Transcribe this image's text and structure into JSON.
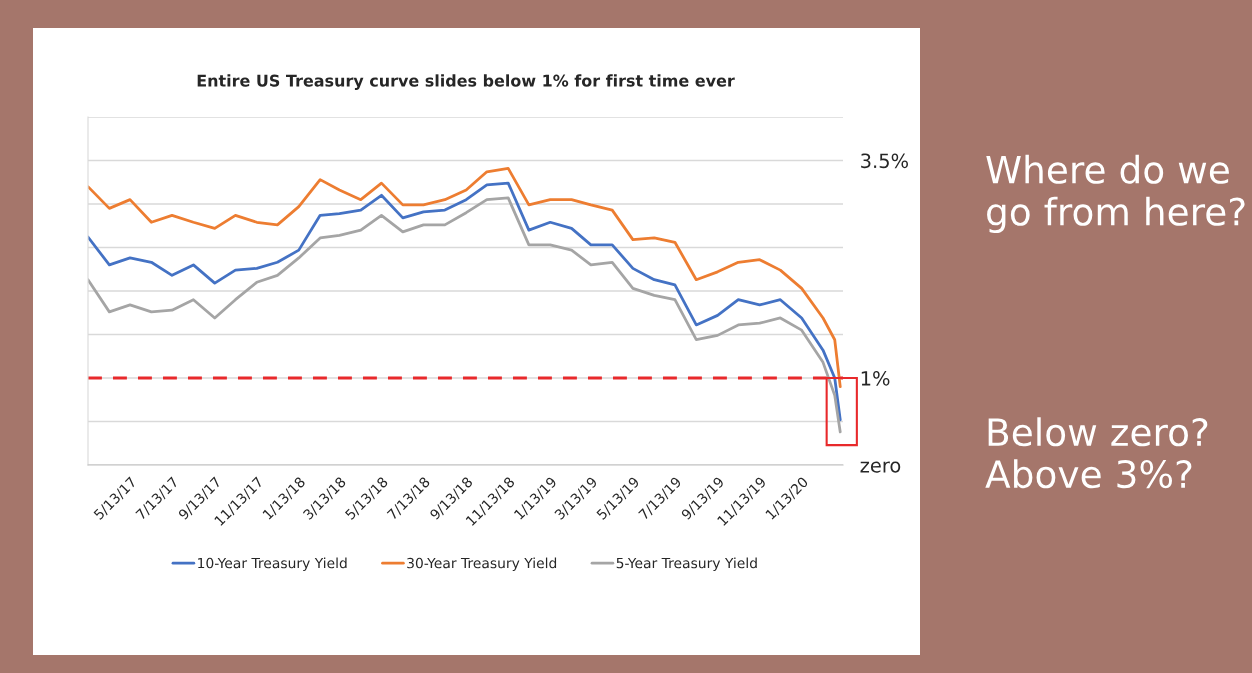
{
  "chart_data": {
    "type": "line",
    "title": "Entire US Treasury curve slides below 1% for first time ever",
    "x": [
      "2017-03-13",
      "2017-04-13",
      "2017-05-13",
      "2017-06-13",
      "2017-07-13",
      "2017-08-13",
      "2017-09-13",
      "2017-10-13",
      "2017-11-13",
      "2017-12-13",
      "2018-01-13",
      "2018-02-13",
      "2018-03-13",
      "2018-04-13",
      "2018-05-13",
      "2018-06-13",
      "2018-07-13",
      "2018-08-13",
      "2018-09-13",
      "2018-10-13",
      "2018-11-13",
      "2018-12-13",
      "2019-01-13",
      "2019-02-13",
      "2019-03-13",
      "2019-04-13",
      "2019-05-13",
      "2019-06-13",
      "2019-07-13",
      "2019-08-13",
      "2019-09-13",
      "2019-10-13",
      "2019-11-13",
      "2019-12-13",
      "2020-01-13",
      "2020-02-13",
      "2020-03-01",
      "2020-03-09"
    ],
    "series": [
      {
        "name": "10-Year Treasury Yield",
        "color": "#4472c4",
        "values": [
          2.62,
          2.3,
          2.38,
          2.33,
          2.18,
          2.3,
          2.09,
          2.24,
          2.26,
          2.33,
          2.47,
          2.87,
          2.89,
          2.93,
          3.1,
          2.84,
          2.91,
          2.93,
          3.05,
          3.22,
          3.24,
          2.7,
          2.79,
          2.72,
          2.53,
          2.53,
          2.26,
          2.13,
          2.07,
          1.61,
          1.72,
          1.9,
          1.84,
          1.9,
          1.69,
          1.32,
          1.0,
          0.52
        ]
      },
      {
        "name": "30-Year Treasury Yield",
        "color": "#ed7d31",
        "values": [
          3.2,
          2.95,
          3.05,
          2.79,
          2.87,
          2.79,
          2.72,
          2.87,
          2.79,
          2.76,
          2.97,
          3.28,
          3.16,
          3.05,
          3.24,
          2.99,
          2.99,
          3.05,
          3.16,
          3.37,
          3.41,
          2.99,
          3.05,
          3.05,
          2.99,
          2.93,
          2.59,
          2.61,
          2.56,
          2.13,
          2.22,
          2.33,
          2.36,
          2.24,
          2.03,
          1.69,
          1.44,
          0.9
        ]
      },
      {
        "name": "5-Year Treasury Yield",
        "color": "#a5a5a5",
        "values": [
          2.13,
          1.76,
          1.84,
          1.76,
          1.78,
          1.9,
          1.69,
          1.9,
          2.1,
          2.18,
          2.38,
          2.61,
          2.64,
          2.7,
          2.87,
          2.68,
          2.76,
          2.76,
          2.9,
          3.05,
          3.07,
          2.53,
          2.53,
          2.47,
          2.3,
          2.33,
          2.03,
          1.95,
          1.9,
          1.44,
          1.49,
          1.61,
          1.63,
          1.69,
          1.55,
          1.18,
          0.8,
          0.38
        ]
      }
    ],
    "xlim": [
      "2017-03-13",
      "2020-03-13"
    ],
    "xticks": [
      {
        "value": "2017-03-13",
        "label": null
      },
      {
        "value": "2017-05-13",
        "label": "5/13/17"
      },
      {
        "value": "2017-07-13",
        "label": "7/13/17"
      },
      {
        "value": "2017-09-13",
        "label": "9/13/17"
      },
      {
        "value": "2017-11-13",
        "label": "11/13/17"
      },
      {
        "value": "2018-01-13",
        "label": "1/13/18"
      },
      {
        "value": "2018-03-13",
        "label": "3/13/18"
      },
      {
        "value": "2018-05-13",
        "label": "5/13/18"
      },
      {
        "value": "2018-07-13",
        "label": "7/13/18"
      },
      {
        "value": "2018-09-13",
        "label": "9/13/18"
      },
      {
        "value": "2018-11-13",
        "label": "11/13/18"
      },
      {
        "value": "2019-01-13",
        "label": "1/13/19"
      },
      {
        "value": "2019-03-13",
        "label": "3/13/19"
      },
      {
        "value": "2019-05-13",
        "label": "5/13/19"
      },
      {
        "value": "2019-07-13",
        "label": "7/13/19"
      },
      {
        "value": "2019-09-13",
        "label": "9/13/19"
      },
      {
        "value": "2019-11-13",
        "label": "11/13/19"
      },
      {
        "value": "2020-01-13",
        "label": "1/13/20"
      }
    ],
    "ylim": [
      0,
      4
    ],
    "yticks": [
      {
        "value": 0,
        "label": "zero"
      },
      {
        "value": 0.5,
        "label": null
      },
      {
        "value": 1,
        "label": "1%"
      },
      {
        "value": 1.5,
        "label": null
      },
      {
        "value": 2,
        "label": null
      },
      {
        "value": 2.5,
        "label": null
      },
      {
        "value": 3,
        "label": null
      },
      {
        "value": 3.5,
        "label": "3.5%"
      },
      {
        "value": 4,
        "label": null
      }
    ],
    "ref_lines": [
      {
        "axis": "y",
        "value": 1,
        "color": "#e8292b",
        "line_style": "dashed"
      }
    ],
    "grid": "y",
    "legend": "bottom",
    "marker": "none",
    "line_style": "solid",
    "annotations": [
      "Where do we go from here?",
      "Below zero?\nAbove 3%?"
    ]
  }
}
